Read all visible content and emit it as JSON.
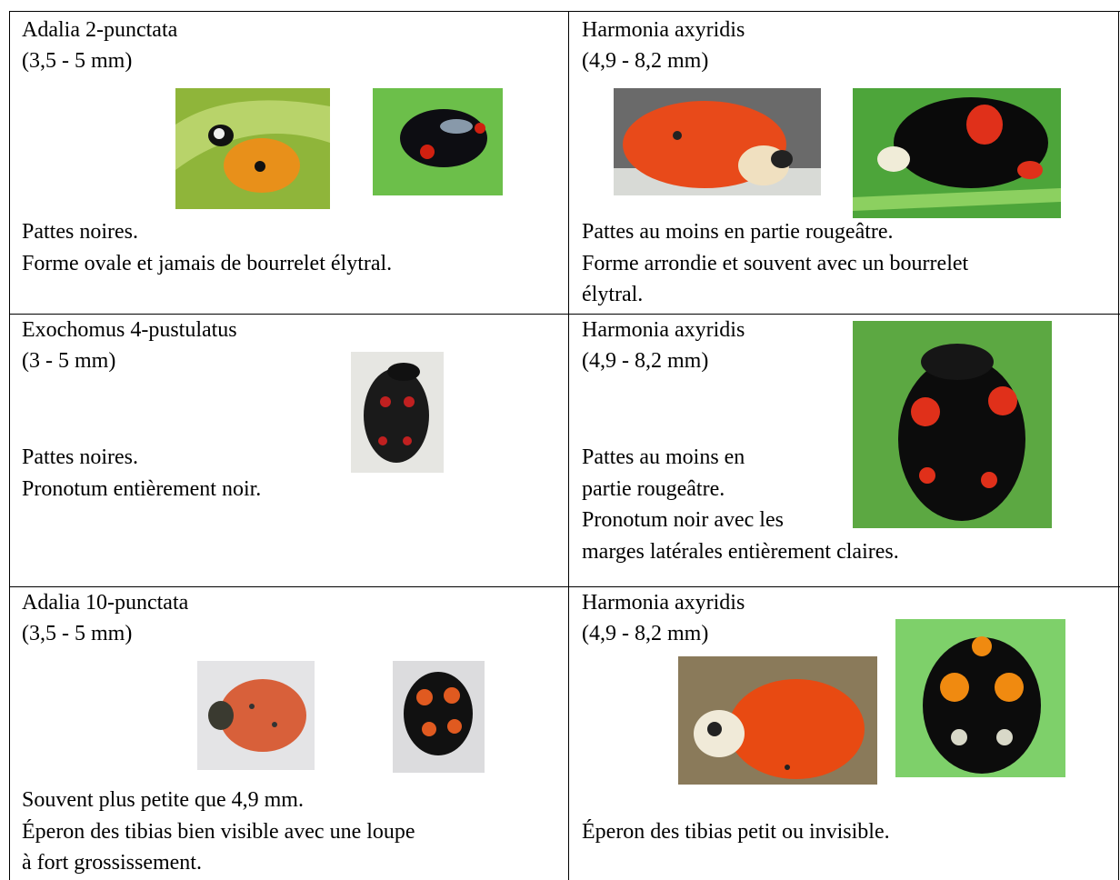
{
  "table": {
    "rows": [
      [
        {
          "name": "Adalia 2-punctata",
          "size": "(3,5 - 5 mm)",
          "lines": [
            "Pattes noires.",
            "Forme ovale et jamais de bourrelet élytral."
          ]
        },
        {
          "name": "Harmonia axyridis",
          "size": "(4,9 - 8,2 mm)",
          "lines": [
            "Pattes au moins en partie rougeâtre.",
            "Forme arrondie et souvent avec un bourrelet",
            "élytral."
          ]
        }
      ],
      [
        {
          "name": "Exochomus 4-pustulatus",
          "size": "(3 - 5 mm)",
          "lines": [
            "Pattes noires.",
            "Pronotum entièrement noir."
          ]
        },
        {
          "name": "Harmonia axyridis",
          "size": "(4,9 - 8,2 mm)",
          "lines": [
            "Pattes au moins en",
            "partie rougeâtre.",
            "Pronotum noir avec les",
            "marges latérales entièrement claires."
          ]
        }
      ],
      [
        {
          "name": "Adalia 10-punctata",
          "size": "(3,5 - 5 mm)",
          "lines": [
            "Souvent plus petite que 4,9 mm.",
            "Éperon des tibias bien visible avec une loupe",
            "à fort grossissement."
          ]
        },
        {
          "name": "Harmonia axyridis",
          "size": "(4,9 - 8,2 mm)",
          "lines": [
            "Éperon des tibias petit ou invisible."
          ]
        }
      ]
    ]
  }
}
